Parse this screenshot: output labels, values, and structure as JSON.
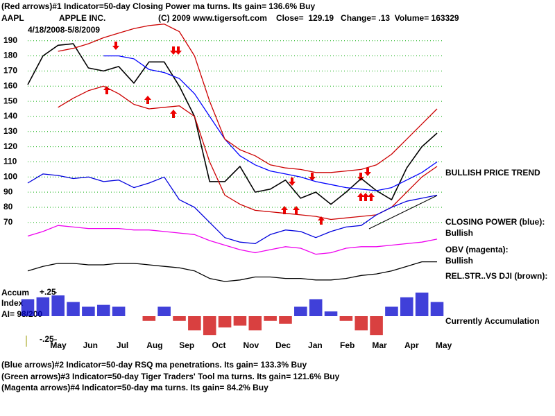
{
  "header": {
    "line1": "(Red arrows)#1 Indicator=50-day Closing Power ma turns.  Its gain= 136.6% Buy",
    "symbol": "AAPL",
    "company": "APPLE INC.",
    "copyright": "(C) 2009 www.tigersoft.com",
    "quote": "Close=  129.19   Change= .13  Volume= 163329",
    "date_range": "4/18/2008-5/8/2009"
  },
  "chart_data": [
    {
      "type": "line",
      "x_labels": [
        "May",
        "Jun",
        "Jul",
        "Aug",
        "Sep",
        "Oct",
        "Nov",
        "Dec",
        "Jan",
        "Feb",
        "Mar",
        "Apr",
        "May"
      ],
      "ylim": [
        -7,
        194
      ],
      "yticks": [
        70,
        80,
        90,
        100,
        110,
        120,
        130,
        140,
        150,
        160,
        170,
        180,
        190
      ],
      "grid": true,
      "grid_color": "#00aa00",
      "annotation": "BULLISH PRICE TREND",
      "series": [
        {
          "color": "#000000",
          "values": [
            161,
            180,
            187,
            188,
            172,
            170,
            173,
            162,
            176,
            176,
            160,
            140,
            97,
            97,
            107,
            90,
            92,
            98,
            86,
            90,
            82,
            90,
            99,
            91,
            85,
            106,
            120,
            129
          ]
        },
        {
          "color": "#0000ff",
          "values": [
            null,
            null,
            null,
            null,
            null,
            180,
            180,
            178,
            171,
            169,
            165,
            155,
            140,
            125,
            114,
            108,
            104,
            102,
            100,
            97,
            95,
            93,
            92,
            91,
            93,
            98,
            103,
            110
          ]
        },
        {
          "color": "#cc0000",
          "values": [
            null,
            null,
            183,
            185,
            188,
            192,
            195,
            198,
            200,
            201,
            196,
            180,
            150,
            125,
            118,
            114,
            108,
            106,
            105,
            103,
            103,
            104,
            105,
            108,
            115,
            125,
            135,
            145
          ]
        },
        {
          "color": "#cc0000",
          "values": [
            null,
            null,
            146,
            152,
            157,
            160,
            155,
            148,
            145,
            146,
            147,
            140,
            110,
            88,
            82,
            78,
            77,
            76,
            75,
            74,
            72,
            73,
            74,
            75,
            80,
            90,
            100,
            107
          ]
        },
        {
          "name": "CLOSING POWER (blue):",
          "status": "Bullish",
          "color": "#0000dd",
          "values": [
            96,
            102,
            101,
            99,
            100,
            97,
            98,
            93,
            96,
            100,
            85,
            80,
            70,
            60,
            57,
            56,
            62,
            65,
            64,
            60,
            64,
            67,
            68,
            75,
            80,
            84,
            86,
            88
          ]
        },
        {
          "name": "OBV (magenta):",
          "status": "Bullish",
          "color": "#ee00ee",
          "values": [
            61,
            64,
            68,
            67,
            66,
            66,
            66,
            65,
            65,
            64,
            63,
            62,
            58,
            55,
            52,
            50,
            52,
            54,
            53,
            49,
            50,
            53,
            54,
            54,
            55,
            56,
            57,
            59
          ]
        },
        {
          "name": "REL.STR..VS DJI (brown):",
          "color": "#000000",
          "values": [
            38,
            41,
            43,
            43,
            42,
            42,
            43,
            43,
            42,
            41,
            40,
            38,
            33,
            31,
            32,
            34,
            34,
            33,
            33,
            32,
            32,
            33,
            35,
            36,
            38,
            41,
            44,
            44
          ]
        }
      ]
    },
    {
      "type": "bar",
      "title": [
        "Accum",
        "Index"
      ],
      "subtitle": "AI= 98/200",
      "annotation": "Currently Accumulation",
      "ylim": [
        -0.25,
        0.25
      ],
      "yticks": [
        {
          "value": 0.25,
          "label": "+.25"
        },
        {
          "value": -0.25,
          "label": "-.25"
        }
      ],
      "positive_color": "#0000cc",
      "negative_color": "#cc0000",
      "values": [
        0.18,
        0.2,
        0.22,
        0.15,
        0.1,
        0.12,
        0.1,
        0.0,
        -0.05,
        0.1,
        -0.05,
        -0.15,
        -0.2,
        -0.12,
        -0.1,
        -0.15,
        -0.05,
        -0.08,
        0.1,
        0.18,
        0.05,
        -0.05,
        -0.15,
        -0.2,
        0.1,
        0.2,
        0.25,
        0.15
      ]
    }
  ],
  "footer": [
    "(Blue arrows)#2 Indicator=50-day RSQ ma penetrations.  Its gain= 133.3% Buy",
    "(Green arrows)#3 Indicator=50-day Tiger Traders' Tool ma turns.  Its gain= 121.6% Buy",
    "(Magenta arrows)#4 Indicator=50-day ma turns.  Its gain= 84.2% Buy"
  ]
}
